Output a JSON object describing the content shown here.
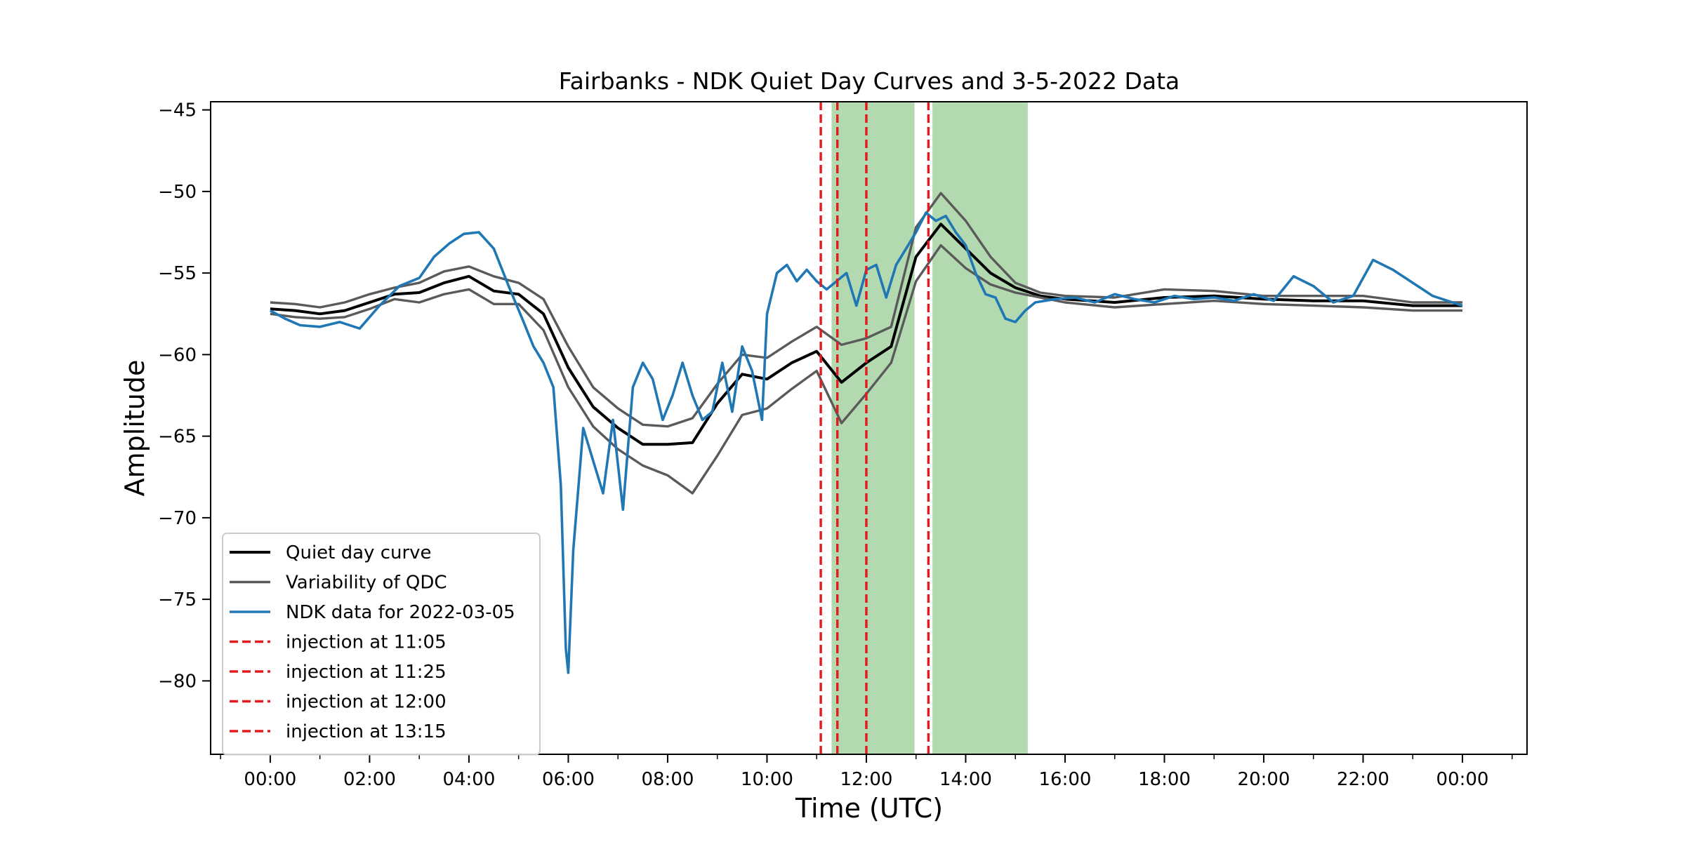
{
  "chart_data": {
    "type": "line",
    "title": "Fairbanks - NDK Quiet Day Curves and 3-5-2022 Data",
    "xlabel": "Time (UTC)",
    "ylabel": "Amplitude",
    "x_unit": "hours UTC",
    "xlim": [
      -1.2,
      25.3
    ],
    "ylim": [
      -84.5,
      -44.5
    ],
    "x_ticks": [
      0,
      2,
      4,
      6,
      8,
      10,
      12,
      14,
      16,
      18,
      20,
      22,
      24
    ],
    "x_tick_labels": [
      "00:00",
      "02:00",
      "04:00",
      "06:00",
      "08:00",
      "10:00",
      "12:00",
      "14:00",
      "16:00",
      "18:00",
      "20:00",
      "22:00",
      "00:00"
    ],
    "y_ticks": [
      -45,
      -50,
      -55,
      -60,
      -65,
      -70,
      -75,
      -80
    ],
    "y_tick_labels": [
      "−45",
      "−50",
      "−55",
      "−60",
      "−65",
      "−70",
      "−75",
      "−80"
    ],
    "grid": false,
    "legend_position": "lower-left",
    "shaded_regions": [
      {
        "x_start": 11.3,
        "x_end": 12.97,
        "color": "#b3d9b0"
      },
      {
        "x_start": 13.33,
        "x_end": 15.25,
        "color": "#b3d9b0"
      }
    ],
    "injections": [
      {
        "label": "injection at 11:05",
        "x": 11.083,
        "color": "#e41a1c"
      },
      {
        "label": "injection at 11:25",
        "x": 11.417,
        "color": "#e41a1c"
      },
      {
        "label": "injection at 12:00",
        "x": 12.0,
        "color": "#e41a1c"
      },
      {
        "label": "injection at 13:15",
        "x": 13.25,
        "color": "#e41a1c"
      }
    ],
    "series": [
      {
        "name": "Quiet day curve",
        "color": "#000000",
        "x": [
          0,
          0.5,
          1,
          1.5,
          2,
          2.5,
          3,
          3.5,
          4,
          4.5,
          5,
          5.5,
          6,
          6.5,
          7,
          7.5,
          8,
          8.5,
          9,
          9.5,
          10,
          10.5,
          11,
          11.5,
          12,
          12.5,
          13,
          13.5,
          14,
          14.5,
          15,
          15.5,
          16,
          17,
          18,
          19,
          20,
          21,
          22,
          23,
          24
        ],
        "y": [
          -57.2,
          -57.3,
          -57.5,
          -57.3,
          -56.8,
          -56.3,
          -56.2,
          -55.6,
          -55.2,
          -56.1,
          -56.3,
          -57.5,
          -60.8,
          -63.2,
          -64.5,
          -65.5,
          -65.5,
          -65.4,
          -63.0,
          -61.2,
          -61.5,
          -60.5,
          -59.8,
          -61.7,
          -60.5,
          -59.5,
          -54.0,
          -52.0,
          -53.5,
          -55.0,
          -55.9,
          -56.4,
          -56.6,
          -56.8,
          -56.5,
          -56.4,
          -56.6,
          -56.7,
          -56.7,
          -57.0,
          -57.0
        ]
      },
      {
        "name": "Variability of QDC",
        "color": "#5a5a5a",
        "x": [
          0,
          0.5,
          1,
          1.5,
          2,
          2.5,
          3,
          3.5,
          4,
          4.5,
          5,
          5.5,
          6,
          6.5,
          7,
          7.5,
          8,
          8.5,
          9,
          9.5,
          10,
          10.5,
          11,
          11.5,
          12,
          12.5,
          13,
          13.5,
          14,
          14.5,
          15,
          15.5,
          16,
          17,
          18,
          19,
          20,
          21,
          22,
          23,
          24
        ],
        "y": [
          -56.8,
          -56.9,
          -57.1,
          -56.8,
          -56.3,
          -55.9,
          -55.6,
          -54.9,
          -54.6,
          -55.2,
          -55.6,
          -56.6,
          -59.5,
          -62.0,
          -63.3,
          -64.3,
          -64.4,
          -63.9,
          -61.8,
          -60.0,
          -60.2,
          -59.2,
          -58.3,
          -59.4,
          -59.0,
          -58.3,
          -52.2,
          -50.1,
          -51.8,
          -54.0,
          -55.6,
          -56.2,
          -56.4,
          -56.5,
          -56.0,
          -56.1,
          -56.4,
          -56.4,
          -56.4,
          -56.8,
          -56.8
        ]
      },
      {
        "name": "",
        "color": "#5a5a5a",
        "x": [
          0,
          0.5,
          1,
          1.5,
          2,
          2.5,
          3,
          3.5,
          4,
          4.5,
          5,
          5.5,
          6,
          6.5,
          7,
          7.5,
          8,
          8.5,
          9,
          9.5,
          10,
          10.5,
          11,
          11.5,
          12,
          12.5,
          13,
          13.5,
          14,
          14.5,
          15,
          15.5,
          16,
          17,
          18,
          19,
          20,
          21,
          22,
          23,
          24
        ],
        "y": [
          -57.5,
          -57.7,
          -57.8,
          -57.7,
          -57.2,
          -56.6,
          -56.8,
          -56.3,
          -56.0,
          -56.9,
          -56.9,
          -58.5,
          -62.0,
          -64.4,
          -65.8,
          -66.8,
          -67.4,
          -68.5,
          -66.2,
          -63.7,
          -63.3,
          -62.1,
          -61.0,
          -64.2,
          -62.4,
          -60.5,
          -55.5,
          -53.3,
          -54.7,
          -55.7,
          -56.2,
          -56.5,
          -56.8,
          -57.1,
          -56.9,
          -56.7,
          -56.9,
          -57.0,
          -57.1,
          -57.3,
          -57.3
        ]
      },
      {
        "name": "NDK data for 2022-03-05",
        "color": "#1f77b4",
        "x": [
          0,
          0.3,
          0.6,
          1,
          1.4,
          1.8,
          2.2,
          2.6,
          3,
          3.3,
          3.6,
          3.9,
          4.2,
          4.5,
          4.8,
          5.1,
          5.3,
          5.5,
          5.7,
          5.85,
          5.95,
          6.0,
          6.1,
          6.3,
          6.5,
          6.7,
          6.9,
          7.1,
          7.3,
          7.5,
          7.7,
          7.9,
          8.1,
          8.3,
          8.5,
          8.7,
          8.9,
          9.1,
          9.3,
          9.5,
          9.7,
          9.9,
          10.0,
          10.2,
          10.4,
          10.6,
          10.8,
          11.0,
          11.2,
          11.4,
          11.6,
          11.8,
          12.0,
          12.2,
          12.4,
          12.6,
          12.8,
          13.0,
          13.2,
          13.4,
          13.6,
          13.8,
          14.0,
          14.2,
          14.4,
          14.6,
          14.8,
          15.0,
          15.2,
          15.4,
          15.8,
          16.2,
          16.6,
          17.0,
          17.4,
          17.8,
          18.2,
          18.6,
          19.0,
          19.4,
          19.8,
          20.2,
          20.6,
          21.0,
          21.4,
          21.8,
          22.2,
          22.6,
          23.0,
          23.4,
          23.7,
          24.0
        ],
        "y": [
          -57.3,
          -57.8,
          -58.2,
          -58.3,
          -58.0,
          -58.4,
          -57.0,
          -55.8,
          -55.3,
          -54.0,
          -53.2,
          -52.6,
          -52.5,
          -53.5,
          -55.8,
          -58.0,
          -59.5,
          -60.5,
          -62.0,
          -68.0,
          -78.0,
          -79.5,
          -72.0,
          -64.5,
          -66.5,
          -68.5,
          -64.0,
          -69.5,
          -62.0,
          -60.5,
          -61.5,
          -64.0,
          -62.5,
          -60.5,
          -62.5,
          -64.0,
          -63.5,
          -60.5,
          -63.5,
          -59.5,
          -61.0,
          -64.0,
          -57.5,
          -55.0,
          -54.5,
          -55.5,
          -54.8,
          -55.5,
          -56.0,
          -55.5,
          -55.0,
          -57.0,
          -54.8,
          -54.5,
          -56.5,
          -54.5,
          -53.5,
          -52.5,
          -51.3,
          -51.8,
          -51.5,
          -52.5,
          -53.3,
          -55.0,
          -56.3,
          -56.5,
          -57.8,
          -58.0,
          -57.3,
          -56.8,
          -56.6,
          -56.5,
          -56.8,
          -56.3,
          -56.6,
          -56.8,
          -56.4,
          -56.6,
          -56.5,
          -56.7,
          -56.3,
          -56.7,
          -55.2,
          -55.8,
          -56.8,
          -56.4,
          -54.2,
          -54.8,
          -55.6,
          -56.4,
          -56.7,
          -57.0
        ]
      }
    ]
  }
}
